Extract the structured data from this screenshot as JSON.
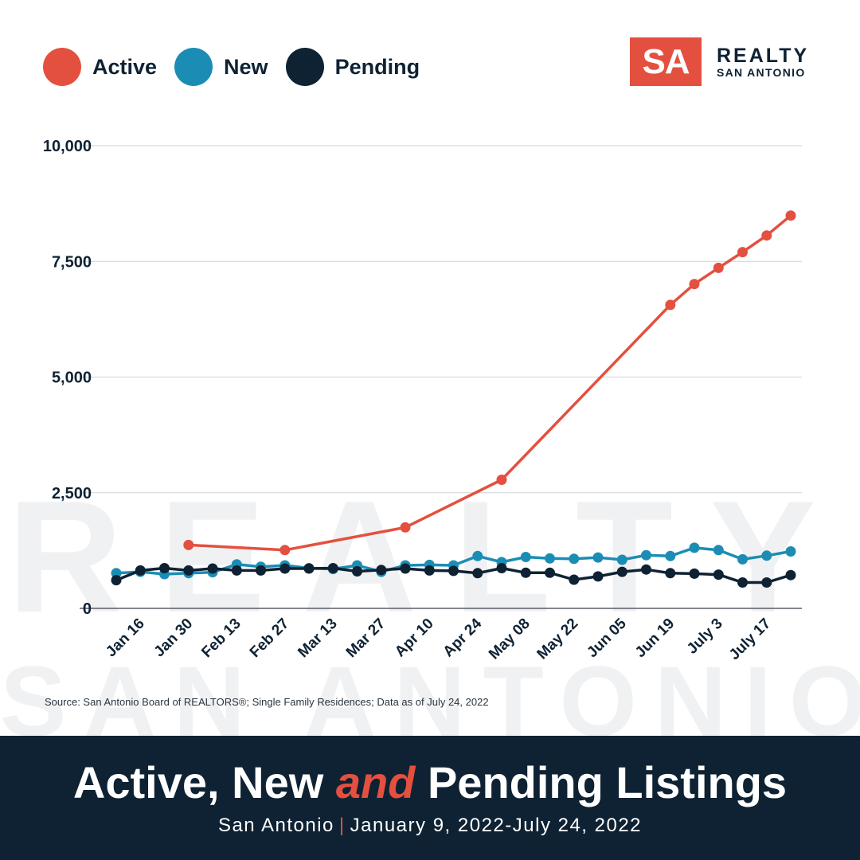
{
  "watermark": {
    "line1": "REALTY",
    "line2": "SAN ANTONIO"
  },
  "logo": {
    "mark": "SA",
    "line1": "REALTY",
    "line2": "SAN ANTONIO",
    "mark_color": "#e4503f"
  },
  "legend": [
    {
      "label": "Active",
      "color": "#e4503f"
    },
    {
      "label": "New",
      "color": "#1b8db5"
    },
    {
      "label": "Pending",
      "color": "#0e2233"
    }
  ],
  "chart_data": {
    "type": "line",
    "ylim": [
      0,
      10000
    ],
    "yticks": [
      0,
      2500,
      5000,
      7500,
      10000
    ],
    "ytick_labels": [
      "0",
      "2,500",
      "5,000",
      "7,500",
      "10,000"
    ],
    "grid": true,
    "x_periods": [
      "Jan 09",
      "Jan 16",
      "Jan 23",
      "Jan 30",
      "Feb 06",
      "Feb 13",
      "Feb 20",
      "Feb 27",
      "Mar 06",
      "Mar 13",
      "Mar 20",
      "Mar 27",
      "Apr 03",
      "Apr 10",
      "Apr 17",
      "Apr 24",
      "May 01",
      "May 08",
      "May 15",
      "May 22",
      "May 29",
      "Jun 05",
      "Jun 12",
      "Jun 19",
      "Jun 26",
      "July 3",
      "July 10",
      "July 17",
      "July 24"
    ],
    "tick_labels": [
      "Jan 16",
      "Jan 30",
      "Feb 13",
      "Feb 27",
      "Mar 13",
      "Mar 27",
      "Apr 10",
      "Apr 24",
      "May 08",
      "May 22",
      "Jun 05",
      "Jun 19",
      "July 3",
      "July 17"
    ],
    "series": [
      {
        "name": "Active",
        "color": "#e4503f",
        "values": [
          null,
          null,
          null,
          1370,
          null,
          null,
          null,
          1260,
          null,
          null,
          null,
          null,
          1750,
          null,
          null,
          null,
          2780,
          null,
          null,
          null,
          null,
          null,
          null,
          6560,
          7010,
          7360,
          7700,
          8060,
          8490
        ]
      },
      {
        "name": "New",
        "color": "#1b8db5",
        "values": [
          760,
          790,
          740,
          760,
          780,
          950,
          900,
          930,
          870,
          850,
          930,
          790,
          930,
          940,
          930,
          1130,
          1000,
          1110,
          1080,
          1070,
          1100,
          1050,
          1150,
          1130,
          1310,
          1260,
          1060,
          1140,
          1230
        ]
      },
      {
        "name": "Pending",
        "color": "#0e2233",
        "values": [
          610,
          820,
          870,
          820,
          860,
          820,
          820,
          860,
          860,
          870,
          800,
          830,
          860,
          820,
          810,
          760,
          870,
          770,
          770,
          620,
          690,
          790,
          840,
          760,
          750,
          730,
          560,
          560,
          720
        ]
      }
    ]
  },
  "source": "Source: San Antonio Board of REALTORS®; Single Family Residences; Data as of July 24, 2022",
  "banner": {
    "title_part1": "Active, New ",
    "title_highlight": "and",
    "title_part2": " Pending Listings",
    "subtitle_left": "San Antonio",
    "subtitle_sep": "|",
    "subtitle_right": "January 9, 2022-July 24, 2022"
  }
}
